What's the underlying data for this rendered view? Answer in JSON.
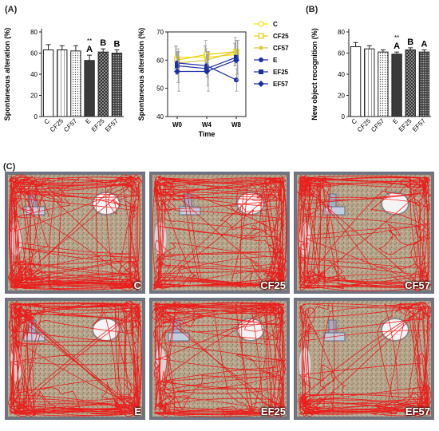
{
  "panel_labels": {
    "a": "(A)",
    "b": "(B)",
    "c": "(C)"
  },
  "colors": {
    "bar_edge": "#222222",
    "track": "#ee1111",
    "arena_floor": "#b7a58c",
    "arena_frame": "#6f7480"
  },
  "chart_data": [
    {
      "type": "bar",
      "id": "spontaneous-alteration-bar",
      "ylabel": "Spontaneous alteration (%)",
      "ylim": [
        0,
        80
      ],
      "yticks": [
        0,
        20,
        40,
        60,
        80
      ],
      "categories": [
        "C",
        "CF25",
        "CF57",
        "E",
        "EF25",
        "EF57"
      ],
      "values": [
        63,
        63,
        62,
        53,
        61,
        60
      ],
      "errors": [
        5,
        4,
        5,
        5,
        3,
        3
      ],
      "fills": [
        "white",
        "hatch",
        "dots",
        "dark",
        "checker",
        "dense"
      ],
      "annotations": [
        "",
        "",
        "",
        "**\nA",
        "B",
        "B"
      ]
    },
    {
      "type": "line",
      "id": "spontaneous-alteration-line",
      "ylabel": "Spontaneous alteration (%)",
      "xlabel": "Time",
      "x": [
        "W0",
        "W4",
        "W8"
      ],
      "ylim": [
        40,
        70
      ],
      "yticks": [
        40,
        50,
        60,
        70
      ],
      "legend_position": "right",
      "series": [
        {
          "name": "C",
          "values": [
            61,
            61,
            62
          ],
          "error": 4,
          "color": "#ffe000",
          "marker": "circle-open"
        },
        {
          "name": "CF25",
          "values": [
            60,
            62,
            63
          ],
          "error": 5,
          "color": "#e6d000",
          "marker": "square-open"
        },
        {
          "name": "CF57",
          "values": [
            59,
            60,
            63
          ],
          "error": 4,
          "color": "#d8c840",
          "marker": "star"
        },
        {
          "name": "E",
          "values": [
            59,
            58,
            53
          ],
          "error": 4,
          "color": "#1a2fa0",
          "marker": "circle"
        },
        {
          "name": "EF25",
          "values": [
            58,
            57,
            61
          ],
          "error": 6,
          "color": "#1a2fa0",
          "marker": "square"
        },
        {
          "name": "EF57",
          "values": [
            56,
            56,
            60
          ],
          "error": 7,
          "color": "#1a2fa0",
          "marker": "diamond"
        }
      ]
    },
    {
      "type": "bar",
      "id": "new-object-recognition-bar",
      "ylabel": "New object recognition (%)",
      "ylim": [
        0,
        80
      ],
      "yticks": [
        0,
        20,
        40,
        60,
        80
      ],
      "categories": [
        "C",
        "CF25",
        "CF57",
        "E",
        "EF25",
        "EF57"
      ],
      "values": [
        66,
        64,
        61,
        59,
        63,
        61
      ],
      "errors": [
        4,
        3,
        2,
        2,
        2,
        2
      ],
      "fills": [
        "white",
        "hatch",
        "dots",
        "dark",
        "checker",
        "dense"
      ],
      "annotations": [
        "",
        "",
        "",
        "**\nA",
        "B",
        "A"
      ]
    }
  ],
  "photos": [
    {
      "label": "C",
      "object": "left"
    },
    {
      "label": "CF25",
      "object": "mid"
    },
    {
      "label": "CF57",
      "object": "mid"
    },
    {
      "label": "E",
      "object": "left"
    },
    {
      "label": "EF25",
      "object": "left"
    },
    {
      "label": "EF57",
      "object": "mid"
    }
  ]
}
